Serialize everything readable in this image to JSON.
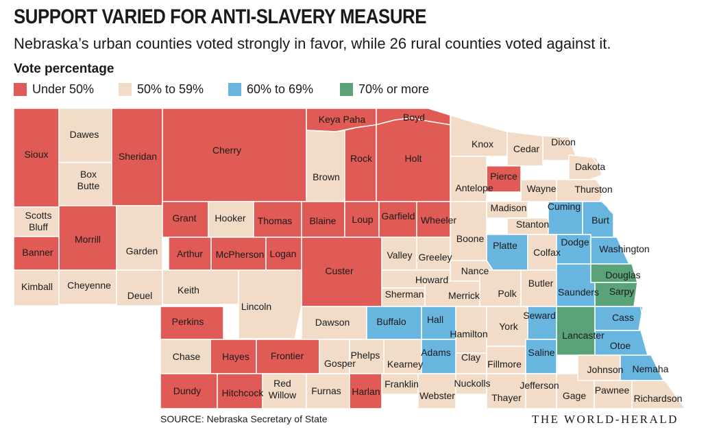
{
  "title": "SUPPORT VARIED FOR ANTI-SLAVERY MEASURE",
  "subtitle": "Nebraska’s urban counties voted strongly in favor, while 26 rural counties voted against it.",
  "legend": {
    "title": "Vote percentage",
    "items": [
      {
        "key": "under50",
        "label": "Under 50%",
        "color": "#e05b55"
      },
      {
        "key": "50to59",
        "label": "50% to 59%",
        "color": "#f2dcc7"
      },
      {
        "key": "60to69",
        "label": "60% to 69%",
        "color": "#68b5df"
      },
      {
        "key": "70plus",
        "label": "70% or more",
        "color": "#5aa378"
      }
    ]
  },
  "counties": [
    {
      "name": "Sioux",
      "cat": "under50"
    },
    {
      "name": "Dawes",
      "cat": "50to59"
    },
    {
      "name": "Box Butte",
      "cat": "50to59"
    },
    {
      "name": "Sheridan",
      "cat": "under50"
    },
    {
      "name": "Cherry",
      "cat": "under50"
    },
    {
      "name": "Keya Paha",
      "cat": "under50"
    },
    {
      "name": "Boyd",
      "cat": "under50"
    },
    {
      "name": "Brown",
      "cat": "50to59"
    },
    {
      "name": "Rock",
      "cat": "under50"
    },
    {
      "name": "Holt",
      "cat": "under50"
    },
    {
      "name": "Knox",
      "cat": "50to59"
    },
    {
      "name": "Cedar",
      "cat": "50to59"
    },
    {
      "name": "Dixon",
      "cat": "50to59"
    },
    {
      "name": "Dakota",
      "cat": "50to59"
    },
    {
      "name": "Antelope",
      "cat": "50to59"
    },
    {
      "name": "Pierce",
      "cat": "under50"
    },
    {
      "name": "Wayne",
      "cat": "50to59"
    },
    {
      "name": "Thurston",
      "cat": "50to59"
    },
    {
      "name": "Scotts Bluff",
      "cat": "50to59"
    },
    {
      "name": "Morrill",
      "cat": "under50"
    },
    {
      "name": "Banner",
      "cat": "under50"
    },
    {
      "name": "Kimball",
      "cat": "50to59"
    },
    {
      "name": "Cheyenne",
      "cat": "50to59"
    },
    {
      "name": "Garden",
      "cat": "50to59"
    },
    {
      "name": "Deuel",
      "cat": "50to59"
    },
    {
      "name": "Grant",
      "cat": "under50"
    },
    {
      "name": "Hooker",
      "cat": "50to59"
    },
    {
      "name": "Thomas",
      "cat": "under50"
    },
    {
      "name": "Blaine",
      "cat": "under50"
    },
    {
      "name": "Loup",
      "cat": "under50"
    },
    {
      "name": "Garfield",
      "cat": "under50"
    },
    {
      "name": "Wheeler",
      "cat": "under50"
    },
    {
      "name": "Arthur",
      "cat": "under50"
    },
    {
      "name": "McPherson",
      "cat": "under50"
    },
    {
      "name": "Logan",
      "cat": "under50"
    },
    {
      "name": "Custer",
      "cat": "under50"
    },
    {
      "name": "Valley",
      "cat": "50to59"
    },
    {
      "name": "Greeley",
      "cat": "50to59"
    },
    {
      "name": "Boone",
      "cat": "50to59"
    },
    {
      "name": "Madison",
      "cat": "50to59"
    },
    {
      "name": "Stanton",
      "cat": "50to59"
    },
    {
      "name": "Cuming",
      "cat": "60to69"
    },
    {
      "name": "Burt",
      "cat": "60to69"
    },
    {
      "name": "Platte",
      "cat": "60to69"
    },
    {
      "name": "Colfax",
      "cat": "50to59"
    },
    {
      "name": "Dodge",
      "cat": "60to69"
    },
    {
      "name": "Washington",
      "cat": "60to69"
    },
    {
      "name": "Nance",
      "cat": "50to59"
    },
    {
      "name": "Keith",
      "cat": "50to59"
    },
    {
      "name": "Lincoln",
      "cat": "50to59"
    },
    {
      "name": "Howard",
      "cat": "50to59"
    },
    {
      "name": "Sherman",
      "cat": "50to59"
    },
    {
      "name": "Merrick",
      "cat": "50to59"
    },
    {
      "name": "Polk",
      "cat": "50to59"
    },
    {
      "name": "Butler",
      "cat": "50to59"
    },
    {
      "name": "Saunders",
      "cat": "60to69"
    },
    {
      "name": "Douglas",
      "cat": "70plus"
    },
    {
      "name": "Sarpy",
      "cat": "70plus"
    },
    {
      "name": "Perkins",
      "cat": "under50"
    },
    {
      "name": "Dawson",
      "cat": "50to59"
    },
    {
      "name": "Buffalo",
      "cat": "60to69"
    },
    {
      "name": "Hall",
      "cat": "60to69"
    },
    {
      "name": "Hamilton",
      "cat": "50to59"
    },
    {
      "name": "York",
      "cat": "50to59"
    },
    {
      "name": "Seward",
      "cat": "60to69"
    },
    {
      "name": "Lancaster",
      "cat": "70plus"
    },
    {
      "name": "Cass",
      "cat": "60to69"
    },
    {
      "name": "Chase",
      "cat": "50to59"
    },
    {
      "name": "Hayes",
      "cat": "under50"
    },
    {
      "name": "Frontier",
      "cat": "under50"
    },
    {
      "name": "Gosper",
      "cat": "50to59"
    },
    {
      "name": "Phelps",
      "cat": "50to59"
    },
    {
      "name": "Kearney",
      "cat": "50to59"
    },
    {
      "name": "Adams",
      "cat": "60to69"
    },
    {
      "name": "Clay",
      "cat": "50to59"
    },
    {
      "name": "Fillmore",
      "cat": "50to59"
    },
    {
      "name": "Saline",
      "cat": "60to69"
    },
    {
      "name": "Otoe",
      "cat": "60to69"
    },
    {
      "name": "Dundy",
      "cat": "under50"
    },
    {
      "name": "Hitchcock",
      "cat": "under50"
    },
    {
      "name": "Red Willow",
      "cat": "50to59"
    },
    {
      "name": "Furnas",
      "cat": "50to59"
    },
    {
      "name": "Harlan",
      "cat": "under50"
    },
    {
      "name": "Franklin",
      "cat": "50to59"
    },
    {
      "name": "Webster",
      "cat": "50to59"
    },
    {
      "name": "Nuckolls",
      "cat": "50to59"
    },
    {
      "name": "Thayer",
      "cat": "50to59"
    },
    {
      "name": "Jefferson",
      "cat": "50to59"
    },
    {
      "name": "Gage",
      "cat": "50to59"
    },
    {
      "name": "Johnson",
      "cat": "50to59"
    },
    {
      "name": "Nemaha",
      "cat": "60to69"
    },
    {
      "name": "Pawnee",
      "cat": "50to59"
    },
    {
      "name": "Richardson",
      "cat": "50to59"
    }
  ],
  "source": "SOURCE: Nebraska Secretary of State",
  "brand": "THE WORLD-HERALD"
}
